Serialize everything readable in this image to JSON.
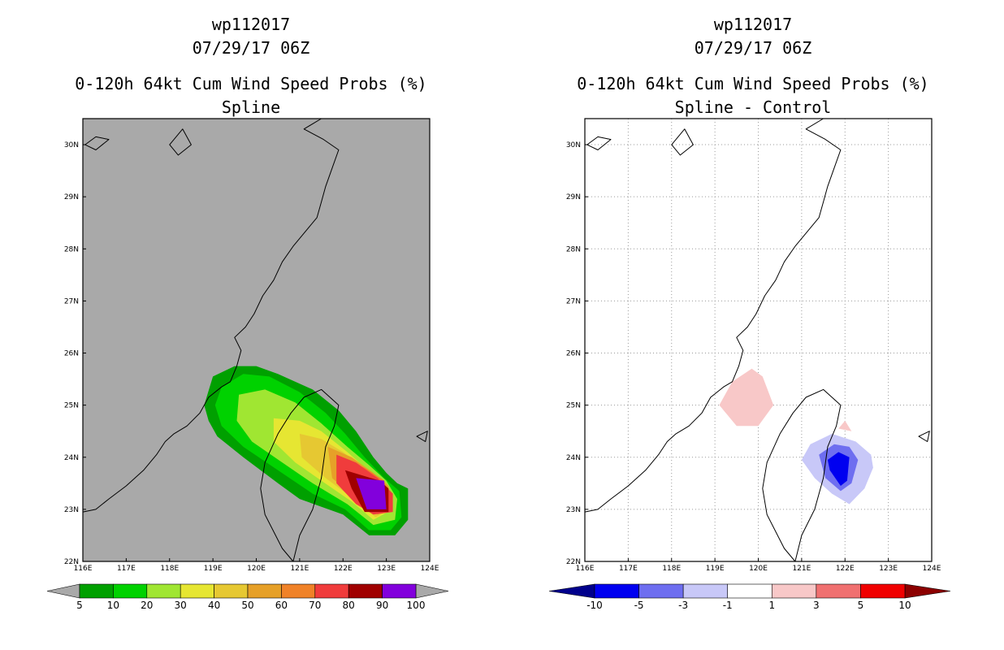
{
  "chart_data": [
    {
      "type": "heatmap",
      "panel": "left",
      "storm_id": "wp112017",
      "datetime": "07/29/17 06Z",
      "title": "0-120h 64kt Cum Wind Speed Probs (%)",
      "subtitle": "Spline",
      "x_ticks": [
        "116E",
        "117E",
        "118E",
        "119E",
        "120E",
        "121E",
        "122E",
        "123E",
        "124E"
      ],
      "y_ticks": [
        "22N",
        "23N",
        "24N",
        "25N",
        "26N",
        "27N",
        "28N",
        "29N",
        "30N"
      ],
      "xlim": [
        116,
        124
      ],
      "ylim": [
        22,
        30.5
      ],
      "grid": false,
      "background_color": "#a9a9a9",
      "colorbar": {
        "labels": [
          "5",
          "10",
          "20",
          "30",
          "40",
          "50",
          "60",
          "70",
          "80",
          "90",
          "100"
        ],
        "colors": [
          "#00a000",
          "#00d200",
          "#a0e632",
          "#e6e632",
          "#e6c832",
          "#e6a028",
          "#f08228",
          "#f03c3c",
          "#a00000",
          "#8200dc"
        ]
      },
      "contours": [
        {
          "level": 5,
          "color": "#00a000",
          "polygon": [
            [
              119.0,
              25.55
            ],
            [
              119.5,
              25.75
            ],
            [
              120.0,
              25.75
            ],
            [
              120.5,
              25.6
            ],
            [
              121.3,
              25.3
            ],
            [
              121.9,
              24.9
            ],
            [
              122.3,
              24.5
            ],
            [
              122.7,
              24.0
            ],
            [
              123.0,
              23.7
            ],
            [
              123.25,
              23.5
            ],
            [
              123.5,
              23.4
            ],
            [
              123.5,
              22.8
            ],
            [
              123.2,
              22.5
            ],
            [
              122.6,
              22.5
            ],
            [
              122.0,
              22.9
            ],
            [
              121.0,
              23.2
            ],
            [
              120.5,
              23.5
            ],
            [
              119.7,
              24.0
            ],
            [
              119.1,
              24.4
            ],
            [
              118.9,
              24.7
            ],
            [
              118.8,
              25.0
            ]
          ]
        },
        {
          "level": 10,
          "color": "#00d200",
          "polygon": [
            [
              119.2,
              25.35
            ],
            [
              119.7,
              25.6
            ],
            [
              120.3,
              25.55
            ],
            [
              121.0,
              25.25
            ],
            [
              121.6,
              24.85
            ],
            [
              122.05,
              24.45
            ],
            [
              122.5,
              24.0
            ],
            [
              122.95,
              23.6
            ],
            [
              123.3,
              23.35
            ],
            [
              123.35,
              22.85
            ],
            [
              123.1,
              22.6
            ],
            [
              122.6,
              22.6
            ],
            [
              122.05,
              23.0
            ],
            [
              121.3,
              23.3
            ],
            [
              120.5,
              23.75
            ],
            [
              119.7,
              24.2
            ],
            [
              119.2,
              24.6
            ],
            [
              119.05,
              25.0
            ]
          ]
        },
        {
          "level": 20,
          "color": "#a0e632",
          "polygon": [
            [
              119.6,
              25.2
            ],
            [
              120.2,
              25.3
            ],
            [
              120.9,
              25.05
            ],
            [
              121.5,
              24.65
            ],
            [
              122.1,
              24.2
            ],
            [
              122.6,
              23.85
            ],
            [
              123.0,
              23.55
            ],
            [
              123.25,
              23.2
            ],
            [
              123.2,
              22.8
            ],
            [
              122.7,
              22.7
            ],
            [
              122.1,
              23.1
            ],
            [
              121.3,
              23.5
            ],
            [
              120.6,
              23.9
            ],
            [
              119.9,
              24.3
            ],
            [
              119.55,
              24.7
            ]
          ]
        },
        {
          "level": 30,
          "color": "#e6e632",
          "polygon": [
            [
              120.4,
              24.75
            ],
            [
              121.0,
              24.7
            ],
            [
              121.5,
              24.5
            ],
            [
              122.1,
              24.1
            ],
            [
              122.65,
              23.7
            ],
            [
              123.05,
              23.45
            ],
            [
              123.15,
              23.0
            ],
            [
              122.7,
              22.8
            ],
            [
              122.2,
              23.15
            ],
            [
              121.5,
              23.55
            ],
            [
              120.9,
              23.9
            ],
            [
              120.4,
              24.3
            ]
          ]
        },
        {
          "level": 40,
          "color": "#e6c832",
          "polygon": [
            [
              121.0,
              24.45
            ],
            [
              121.5,
              24.35
            ],
            [
              122.0,
              24.1
            ],
            [
              122.55,
              23.75
            ],
            [
              123.0,
              23.5
            ],
            [
              123.1,
              23.0
            ],
            [
              122.75,
              22.85
            ],
            [
              122.25,
              23.2
            ],
            [
              121.6,
              23.6
            ],
            [
              121.05,
              24.0
            ]
          ]
        },
        {
          "level": 50,
          "color": "#e6a028",
          "polygon": [
            [
              121.65,
              24.2
            ],
            [
              122.2,
              24.0
            ],
            [
              122.7,
              23.7
            ],
            [
              123.05,
              23.45
            ],
            [
              123.1,
              23.0
            ],
            [
              122.8,
              22.9
            ],
            [
              122.3,
              23.2
            ],
            [
              121.75,
              23.6
            ]
          ]
        },
        {
          "level": 60,
          "color": "#f08228",
          "polygon": [
            [
              122.0,
              23.95
            ],
            [
              122.5,
              23.8
            ],
            [
              122.95,
              23.55
            ],
            [
              123.1,
              23.05
            ],
            [
              122.8,
              22.95
            ],
            [
              122.35,
              23.25
            ],
            [
              122.05,
              23.6
            ]
          ]
        },
        {
          "level": 70,
          "color": "#f03c3c",
          "polygon": [
            [
              121.85,
              24.05
            ],
            [
              122.3,
              23.9
            ],
            [
              122.8,
              23.6
            ],
            [
              123.15,
              23.3
            ],
            [
              123.15,
              22.95
            ],
            [
              122.7,
              22.9
            ],
            [
              122.3,
              23.1
            ],
            [
              121.85,
              23.5
            ]
          ]
        },
        {
          "level": 80,
          "color": "#a00000",
          "polygon": [
            [
              122.05,
              23.75
            ],
            [
              122.45,
              23.65
            ],
            [
              122.85,
              23.55
            ],
            [
              123.05,
              23.4
            ],
            [
              123.05,
              22.95
            ],
            [
              122.5,
              22.95
            ],
            [
              122.2,
              23.4
            ]
          ]
        },
        {
          "level": 90,
          "color": "#8200dc",
          "polygon": [
            [
              122.3,
              23.6
            ],
            [
              122.95,
              23.55
            ],
            [
              123.0,
              23.0
            ],
            [
              122.55,
              23.0
            ]
          ]
        }
      ]
    },
    {
      "type": "heatmap",
      "panel": "right",
      "storm_id": "wp112017",
      "datetime": "07/29/17 06Z",
      "title": "0-120h 64kt Cum Wind Speed Probs (%)",
      "subtitle": "Spline - Control",
      "x_ticks": [
        "116E",
        "117E",
        "118E",
        "119E",
        "120E",
        "121E",
        "122E",
        "123E",
        "124E"
      ],
      "y_ticks": [
        "22N",
        "23N",
        "24N",
        "25N",
        "26N",
        "27N",
        "28N",
        "29N",
        "30N"
      ],
      "xlim": [
        116,
        124
      ],
      "ylim": [
        22,
        30.5
      ],
      "grid": true,
      "background_color": "#ffffff",
      "colorbar": {
        "labels": [
          "-10",
          "-5",
          "-3",
          "-1",
          "1",
          "3",
          "5",
          "10"
        ],
        "colors": [
          "#00008c",
          "#0000f0",
          "#6e6ef0",
          "#c8c8f8",
          "#ffffff",
          "#f8c8c8",
          "#f07070",
          "#f00000",
          "#8c0000"
        ]
      },
      "contours": [
        {
          "level": 1,
          "color": "#f8c8c8",
          "polygon": [
            [
              119.4,
              25.45
            ],
            [
              119.85,
              25.7
            ],
            [
              120.1,
              25.55
            ],
            [
              120.35,
              25.0
            ],
            [
              120.0,
              24.6
            ],
            [
              119.5,
              24.6
            ],
            [
              119.1,
              25.0
            ]
          ]
        },
        {
          "level": 1,
          "color": "#f8c8c8",
          "polygon": [
            [
              122.0,
              24.7
            ],
            [
              122.15,
              24.5
            ],
            [
              121.85,
              24.55
            ]
          ]
        },
        {
          "level": -1,
          "color": "#c8c8f8",
          "polygon": [
            [
              121.0,
              23.95
            ],
            [
              121.2,
              24.25
            ],
            [
              121.7,
              24.45
            ],
            [
              122.25,
              24.3
            ],
            [
              122.6,
              24.05
            ],
            [
              122.65,
              23.8
            ],
            [
              122.45,
              23.4
            ],
            [
              122.1,
              23.1
            ],
            [
              121.7,
              23.3
            ],
            [
              121.3,
              23.6
            ]
          ]
        },
        {
          "level": -3,
          "color": "#6e6ef0",
          "polygon": [
            [
              121.4,
              24.05
            ],
            [
              121.75,
              24.25
            ],
            [
              122.1,
              24.2
            ],
            [
              122.3,
              23.95
            ],
            [
              122.15,
              23.5
            ],
            [
              121.9,
              23.35
            ],
            [
              121.55,
              23.6
            ]
          ]
        },
        {
          "level": -5,
          "color": "#0000f0",
          "polygon": [
            [
              121.6,
              23.95
            ],
            [
              121.85,
              24.1
            ],
            [
              122.1,
              24.0
            ],
            [
              122.05,
              23.55
            ],
            [
              121.9,
              23.45
            ],
            [
              121.65,
              23.75
            ]
          ]
        }
      ]
    }
  ]
}
